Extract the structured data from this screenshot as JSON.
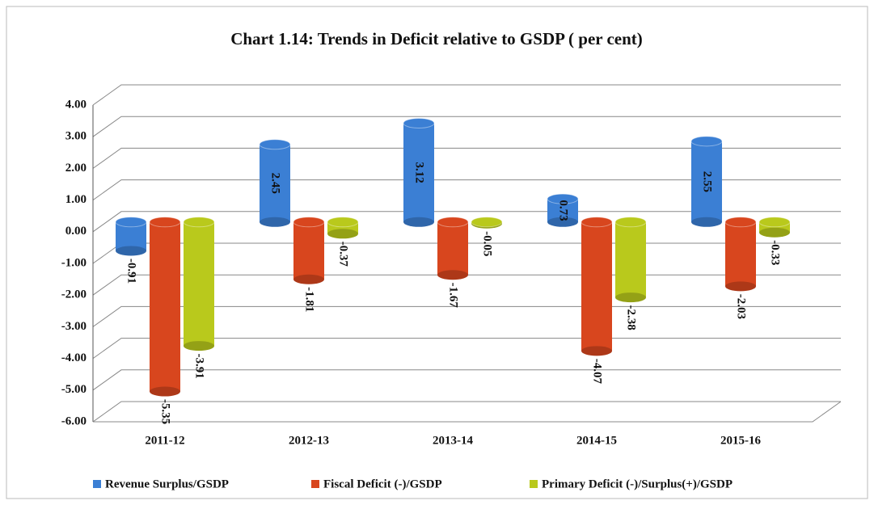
{
  "chart_data": {
    "type": "bar",
    "title": "Chart 1.14: Trends in Deficit relative to GSDP ( per cent)",
    "categories": [
      "2011-12",
      "2012-13",
      "2013-14",
      "2014-15",
      "2015-16"
    ],
    "series": [
      {
        "name": "Revenue Surplus/GSDP",
        "color": "#3b7fd4",
        "values": [
          -0.91,
          2.45,
          3.12,
          0.73,
          2.55
        ]
      },
      {
        "name": "Fiscal Deficit (-)/GSDP",
        "color": "#d8461e",
        "values": [
          -5.35,
          -1.81,
          -1.67,
          -4.07,
          -2.03
        ]
      },
      {
        "name": "Primary Deficit (-)/Surplus(+)/GSDP",
        "color": "#b9c91c",
        "values": [
          -3.91,
          -0.37,
          -0.05,
          -2.38,
          -0.33
        ]
      }
    ],
    "ylim": [
      -6,
      4
    ],
    "yticks": [
      {
        "value": -6,
        "label": "-6.00"
      },
      {
        "value": -5,
        "label": "-5.00"
      },
      {
        "value": -4,
        "label": "-4.00"
      },
      {
        "value": -3,
        "label": "-3.00"
      },
      {
        "value": -2,
        "label": "-2.00"
      },
      {
        "value": -1,
        "label": "-1.00"
      },
      {
        "value": 0,
        "label": "0.00"
      },
      {
        "value": 1,
        "label": "1.00"
      },
      {
        "value": 2,
        "label": "2.00"
      },
      {
        "value": 3,
        "label": "3.00"
      },
      {
        "value": 4,
        "label": "4.00"
      }
    ],
    "grid": true,
    "legend": "bottom"
  }
}
